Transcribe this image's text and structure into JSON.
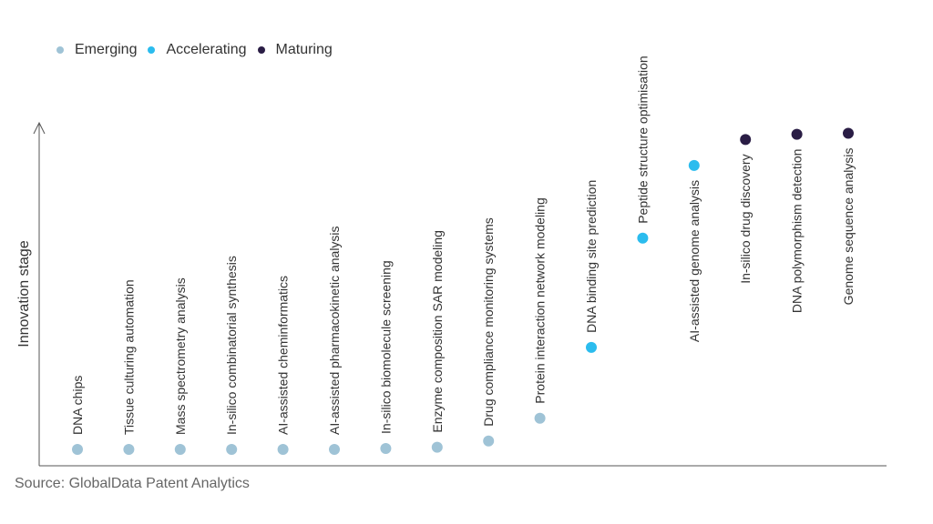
{
  "chart_data": {
    "type": "scatter",
    "ylabel": "Innovation stage",
    "source": "Source: GlobalData Patent Analytics",
    "legend": [
      {
        "name": "Emerging",
        "color": "#9fc3d6"
      },
      {
        "name": "Accelerating",
        "color": "#2bbcee"
      },
      {
        "name": "Maturing",
        "color": "#2a1d45"
      }
    ],
    "points": [
      {
        "label": "DNA chips",
        "stage": "Emerging",
        "value": 0.0
      },
      {
        "label": "Tissue culturing automation",
        "stage": "Emerging",
        "value": 0.0
      },
      {
        "label": "Mass spectrometry analysis",
        "stage": "Emerging",
        "value": 0.0
      },
      {
        "label": "In-silico combinatorial synthesis",
        "stage": "Emerging",
        "value": 0.0
      },
      {
        "label": "AI-assisted cheminformatics",
        "stage": "Emerging",
        "value": 0.0
      },
      {
        "label": "AI-assisted pharmacokinetic analysis",
        "stage": "Emerging",
        "value": 0.0
      },
      {
        "label": "In-silico biomolecule screening",
        "stage": "Emerging",
        "value": 0.003
      },
      {
        "label": "Enzyme composition SAR modeling",
        "stage": "Emerging",
        "value": 0.007
      },
      {
        "label": "Drug compliance monitoring systems",
        "stage": "Emerging",
        "value": 0.027
      },
      {
        "label": "Protein interaction network modeling",
        "stage": "Emerging",
        "value": 0.1
      },
      {
        "label": "DNA binding site prediction",
        "stage": "Accelerating",
        "value": 0.327
      },
      {
        "label": "Peptide structure optimisation",
        "stage": "Accelerating",
        "value": 0.677
      },
      {
        "label": "AI-assisted genome analysis",
        "stage": "Accelerating",
        "value": 0.91
      },
      {
        "label": "In-silico drug discovery",
        "stage": "Maturing",
        "value": 0.993
      },
      {
        "label": "DNA polymorphism detection",
        "stage": "Maturing",
        "value": 1.01
      },
      {
        "label": "Genome sequence analysis",
        "stage": "Maturing",
        "value": 1.013
      }
    ]
  }
}
